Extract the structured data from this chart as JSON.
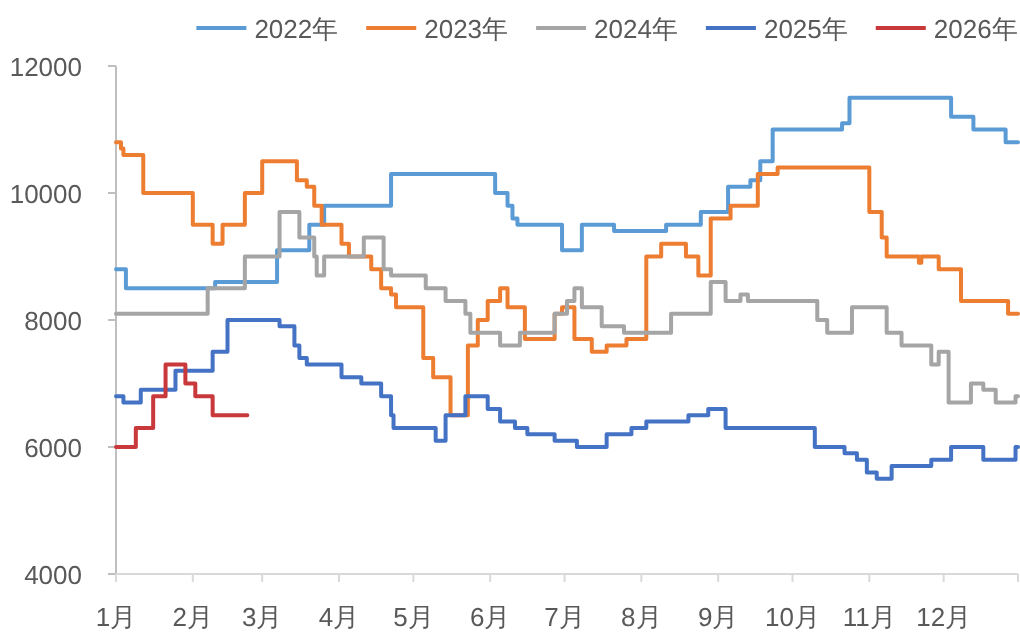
{
  "chart_data": {
    "type": "step",
    "xlim": [
      "--01-01",
      "--12-31"
    ],
    "ylim": [
      4000,
      12000
    ],
    "xticks": [
      {
        "value": "--01-01",
        "label": "1月"
      },
      {
        "value": "--02-01",
        "label": "2月"
      },
      {
        "value": "--03-01",
        "label": "3月"
      },
      {
        "value": "--04-01",
        "label": "4月"
      },
      {
        "value": "--05-01",
        "label": "5月"
      },
      {
        "value": "--06-01",
        "label": "6月"
      },
      {
        "value": "--07-01",
        "label": "7月"
      },
      {
        "value": "--08-01",
        "label": "8月"
      },
      {
        "value": "--09-01",
        "label": "9月"
      },
      {
        "value": "--10-01",
        "label": "10月"
      },
      {
        "value": "--11-01",
        "label": "11月"
      },
      {
        "value": "--12-01",
        "label": "12月"
      },
      {
        "value": "--12-31",
        "label": null
      }
    ],
    "yticks": [
      4000,
      6000,
      8000,
      10000,
      12000
    ],
    "legend": "top",
    "line_style": "solid",
    "marker": "none",
    "series": [
      {
        "name": "2022年",
        "color": "#5b9bd5",
        "x": [
          "--01-01",
          "--01-05",
          "--02-10",
          "--03-07",
          "--03-20",
          "--03-26",
          "--04-22",
          "--06-03",
          "--06-08",
          "--06-10",
          "--06-12",
          "--06-30",
          "--07-08",
          "--07-21",
          "--08-11",
          "--08-25",
          "--09-05",
          "--09-14",
          "--09-18",
          "--09-23",
          "--10-21",
          "--10-24",
          "--12-04",
          "--12-13",
          "--12-26",
          "--12-31"
        ],
        "values": [
          8800,
          8500,
          8600,
          9100,
          9500,
          9800,
          10300,
          10000,
          9800,
          9600,
          9500,
          9100,
          9500,
          9400,
          9500,
          9700,
          10100,
          10200,
          10500,
          11000,
          11100,
          11500,
          11200,
          11000,
          10800,
          10800
        ]
      },
      {
        "name": "2023年",
        "color": "#ed7d31",
        "x": [
          "--01-01",
          "--01-03",
          "--01-04",
          "--01-12",
          "--02-01",
          "--02-09",
          "--02-13",
          "--02-22",
          "--03-01",
          "--03-15",
          "--03-19",
          "--03-22",
          "--03-25",
          "--04-02",
          "--04-05",
          "--04-14",
          "--04-18",
          "--04-22",
          "--04-24",
          "--05-05",
          "--05-09",
          "--05-16",
          "--05-23",
          "--05-27",
          "--05-31",
          "--06-05",
          "--06-08",
          "--06-15",
          "--06-27",
          "--06-30",
          "--07-05",
          "--07-12",
          "--07-18",
          "--07-26",
          "--08-03",
          "--08-09",
          "--08-19",
          "--08-24",
          "--08-29",
          "--09-06",
          "--09-17",
          "--09-25",
          "--11-01",
          "--11-06",
          "--11-08",
          "--11-21",
          "--11-22",
          "--11-29",
          "--12-08",
          "--12-27",
          "--12-31"
        ],
        "values": [
          10800,
          10700,
          10600,
          10000,
          9500,
          9200,
          9500,
          10000,
          10500,
          10200,
          10100,
          9800,
          9500,
          9200,
          9000,
          8800,
          8500,
          8400,
          8200,
          7400,
          7100,
          6500,
          7600,
          8000,
          8300,
          8500,
          8200,
          7700,
          8100,
          8200,
          7700,
          7500,
          7600,
          7700,
          9000,
          9200,
          9000,
          8700,
          9600,
          9800,
          10300,
          10400,
          9700,
          9300,
          9000,
          8900,
          9000,
          8800,
          8300,
          8100,
          8100
        ]
      },
      {
        "name": "2024年",
        "color": "#a5a5a5",
        "x": [
          "--01-01",
          "--02-07",
          "--02-22",
          "--03-08",
          "--03-16",
          "--03-22",
          "--03-23",
          "--03-26",
          "--04-11",
          "--04-19",
          "--04-22",
          "--05-06",
          "--05-14",
          "--05-22",
          "--05-24",
          "--06-05",
          "--06-13",
          "--06-27",
          "--07-02",
          "--07-05",
          "--07-08",
          "--07-16",
          "--07-25",
          "--08-13",
          "--08-29",
          "--09-04",
          "--09-10",
          "--09-13",
          "--10-11",
          "--10-15",
          "--10-25",
          "--11-08",
          "--11-14",
          "--11-26",
          "--11-29",
          "--12-03",
          "--12-12",
          "--12-17",
          "--12-22",
          "--12-30",
          "--12-31"
        ],
        "values": [
          8100,
          8500,
          9000,
          9700,
          9300,
          9000,
          8700,
          9000,
          9300,
          8800,
          8700,
          8500,
          8300,
          8100,
          7800,
          7600,
          7800,
          8100,
          8300,
          8500,
          8200,
          7900,
          7800,
          8100,
          8600,
          8300,
          8400,
          8300,
          8000,
          7800,
          8200,
          7800,
          7600,
          7300,
          7500,
          6700,
          7000,
          6900,
          6700,
          6800,
          6800
        ]
      },
      {
        "name": "2025年",
        "color": "#4472c4",
        "x": [
          "--01-01",
          "--01-04",
          "--01-11",
          "--01-25",
          "--02-09",
          "--02-15",
          "--03-08",
          "--03-14",
          "--03-16",
          "--03-19",
          "--04-02",
          "--04-10",
          "--04-18",
          "--04-22",
          "--04-23",
          "--05-10",
          "--05-14",
          "--05-22",
          "--05-31",
          "--06-05",
          "--06-11",
          "--06-16",
          "--06-27",
          "--07-06",
          "--07-18",
          "--07-28",
          "--08-03",
          "--08-20",
          "--08-28",
          "--09-04",
          "--10-10",
          "--10-22",
          "--10-27",
          "--10-31",
          "--11-04",
          "--11-10",
          "--11-26",
          "--12-04",
          "--12-17",
          "--12-30",
          "--12-31"
        ],
        "values": [
          6800,
          6700,
          6900,
          7200,
          7500,
          8000,
          7900,
          7600,
          7400,
          7300,
          7100,
          7000,
          6800,
          6500,
          6300,
          6100,
          6500,
          6800,
          6600,
          6400,
          6300,
          6200,
          6100,
          6000,
          6200,
          6300,
          6400,
          6500,
          6600,
          6300,
          6000,
          5900,
          5800,
          5600,
          5500,
          5700,
          5800,
          6000,
          5800,
          6000,
          6000
        ]
      },
      {
        "name": "2026年",
        "color": "#c9393b",
        "x": [
          "--01-01",
          "--01-09",
          "--01-16",
          "--01-21",
          "--01-29",
          "--02-02",
          "--02-09",
          "--02-23"
        ],
        "values": [
          6000,
          6300,
          6800,
          7300,
          7000,
          6800,
          6500,
          6500
        ]
      }
    ]
  }
}
